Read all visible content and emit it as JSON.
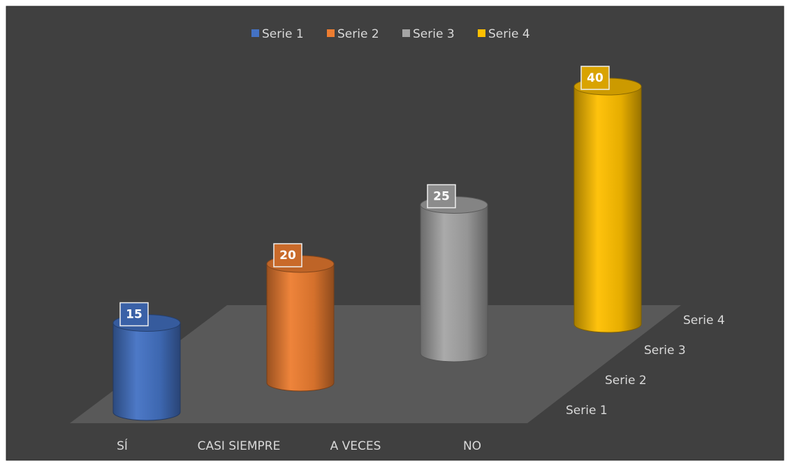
{
  "chart_data": {
    "type": "bar3d",
    "categories": [
      "SÍ",
      "CASI SIEMPRE",
      "A VECES",
      "NO"
    ],
    "series": [
      {
        "name": "Serie 1",
        "color": "#4472c4",
        "values": [
          15,
          null,
          null,
          null
        ]
      },
      {
        "name": "Serie 2",
        "color": "#ed7d31",
        "values": [
          null,
          20,
          null,
          null
        ]
      },
      {
        "name": "Serie 3",
        "color": "#a5a5a5",
        "values": [
          null,
          null,
          25,
          null
        ]
      },
      {
        "name": "Serie 4",
        "color": "#ffc000",
        "values": [
          null,
          null,
          null,
          40
        ]
      }
    ],
    "legend": "top"
  }
}
